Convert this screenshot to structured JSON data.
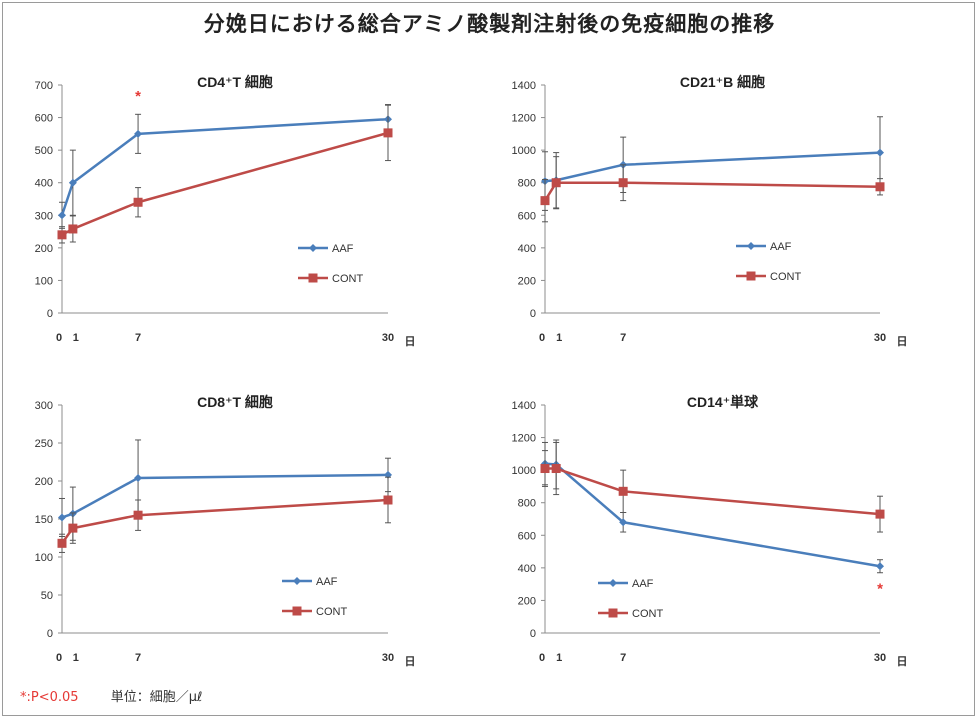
{
  "title": "分娩日における総合アミノ酸製剤注射後の免疫細胞の推移",
  "footer": {
    "significance": "*:P<0.05",
    "unit": "単位：細胞／μℓ"
  },
  "chart_data": [
    {
      "type": "line",
      "title": "CD4⁺T 細胞",
      "x": [
        0,
        1,
        7,
        30
      ],
      "xticks": [
        "0",
        "1",
        "7",
        "30"
      ],
      "xlabel": "日",
      "ylim": [
        0,
        700
      ],
      "yticks": [
        0,
        100,
        200,
        300,
        400,
        500,
        600,
        700
      ],
      "legend": "bottom-right",
      "series": [
        {
          "name": "AAF",
          "color": "#4a7ebb",
          "values": [
            300,
            400,
            550,
            595
          ],
          "errors": [
            40,
            100,
            60,
            45
          ]
        },
        {
          "name": "CONT",
          "color": "#be4b48",
          "values": [
            240,
            258,
            340,
            553
          ],
          "errors": [
            25,
            40,
            45,
            85
          ]
        }
      ],
      "annotations": [
        {
          "text": "*",
          "x": 7,
          "y": 670,
          "color": "#e53935"
        }
      ]
    },
    {
      "type": "line",
      "title": "CD21⁺B 細胞",
      "x": [
        0,
        1,
        7,
        30
      ],
      "xticks": [
        "0",
        "1",
        "7",
        "30"
      ],
      "xlabel": "日",
      "ylim": [
        0,
        1400
      ],
      "yticks": [
        0,
        200,
        400,
        600,
        800,
        1000,
        1200,
        1400
      ],
      "legend": "bottom-right",
      "series": [
        {
          "name": "AAF",
          "color": "#4a7ebb",
          "values": [
            810,
            815,
            910,
            985
          ],
          "errors": [
            180,
            170,
            170,
            220
          ]
        },
        {
          "name": "CONT",
          "color": "#be4b48",
          "values": [
            690,
            800,
            800,
            775
          ],
          "errors": [
            130,
            160,
            110,
            50
          ]
        }
      ],
      "annotations": []
    },
    {
      "type": "line",
      "title": "CD8⁺T 細胞",
      "x": [
        0,
        1,
        7,
        30
      ],
      "xticks": [
        "0",
        "1",
        "7",
        "30"
      ],
      "xlabel": "日",
      "ylim": [
        0,
        300
      ],
      "yticks": [
        0,
        50,
        100,
        150,
        200,
        250,
        300
      ],
      "legend": "bottom-right",
      "series": [
        {
          "name": "AAF",
          "color": "#4a7ebb",
          "values": [
            152,
            157,
            204,
            208
          ],
          "errors": [
            25,
            35,
            50,
            22
          ]
        },
        {
          "name": "CONT",
          "color": "#be4b48",
          "values": [
            118,
            138,
            155,
            175
          ],
          "errors": [
            12,
            20,
            20,
            30
          ]
        }
      ],
      "annotations": []
    },
    {
      "type": "line",
      "title": "CD14⁺単球",
      "x": [
        0,
        1,
        7,
        30
      ],
      "xticks": [
        "0",
        "1",
        "7",
        "30"
      ],
      "xlabel": "日",
      "ylim": [
        0,
        1400
      ],
      "yticks": [
        0,
        200,
        400,
        600,
        800,
        1000,
        1200,
        1400
      ],
      "legend": "bottom-left",
      "series": [
        {
          "name": "AAF",
          "color": "#4a7ebb",
          "values": [
            1040,
            1035,
            680,
            410
          ],
          "errors": [
            130,
            150,
            60,
            40
          ]
        },
        {
          "name": "CONT",
          "color": "#be4b48",
          "values": [
            1010,
            1010,
            870,
            730
          ],
          "errors": [
            110,
            160,
            130,
            110
          ]
        }
      ],
      "annotations": [
        {
          "text": "*",
          "x": 30,
          "y": 280,
          "color": "#e53935"
        }
      ]
    }
  ]
}
